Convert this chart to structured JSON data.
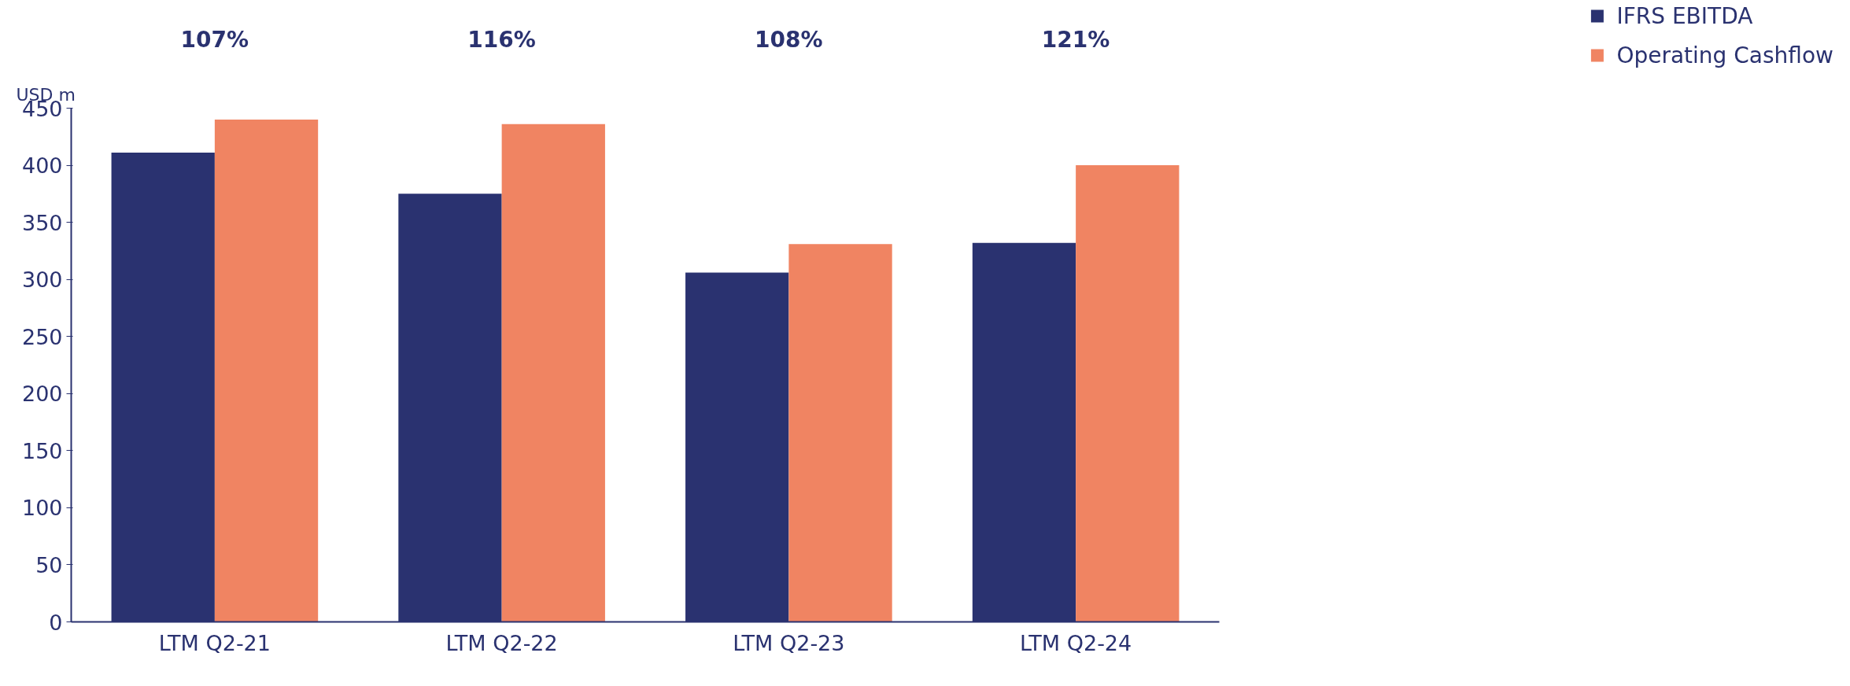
{
  "chart_data": {
    "type": "bar",
    "ylabel": "USD m",
    "categories": [
      "LTM Q2-21",
      "LTM Q2-22",
      "LTM Q2-23",
      "LTM Q2-24"
    ],
    "series": [
      {
        "name": "IFRS EBITDA",
        "color": "#2a3270",
        "values": [
          411,
          375,
          306,
          332
        ]
      },
      {
        "name": "Operating Cashflow",
        "color": "#f08462",
        "values": [
          440,
          436,
          331,
          400
        ]
      }
    ],
    "annotations": [
      "107%",
      "116%",
      "108%",
      "121%"
    ],
    "ylim": [
      0,
      450
    ],
    "yticks": [
      0,
      50,
      100,
      150,
      200,
      250,
      300,
      350,
      400,
      450
    ],
    "grid": false,
    "legend": "top right"
  }
}
